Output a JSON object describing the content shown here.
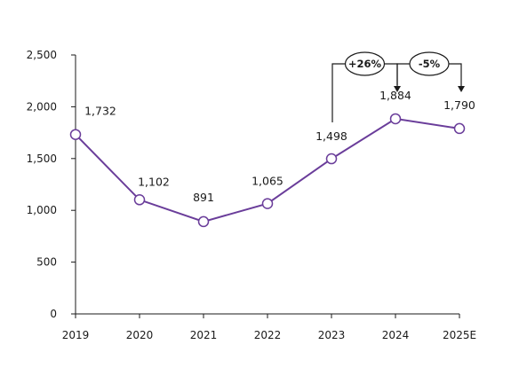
{
  "chart_data": {
    "type": "line",
    "categories": [
      "2019",
      "2020",
      "2021",
      "2022",
      "2023",
      "2024",
      "2025E"
    ],
    "values": [
      1732,
      1102,
      891,
      1065,
      1498,
      1884,
      1790
    ],
    "data_labels": [
      "1,732",
      "1,102",
      "891",
      "1,065",
      "1,498",
      "1,884",
      "1,790"
    ],
    "y_ticks": [
      0,
      500,
      1000,
      1500,
      2000,
      2500
    ],
    "y_tick_labels": [
      "0",
      "500",
      "1,000",
      "1,500",
      "2,000",
      "2,500"
    ],
    "ylim": [
      0,
      2500
    ],
    "title": "",
    "xlabel": "",
    "ylabel": "",
    "grid": false,
    "line_color": "#6a3d9a",
    "marker_fill": "#ffffff",
    "annotations": [
      {
        "label": "+26%",
        "from": "2023",
        "to": "2024"
      },
      {
        "label": "-5%",
        "from": "2024",
        "to": "2025E"
      }
    ]
  }
}
